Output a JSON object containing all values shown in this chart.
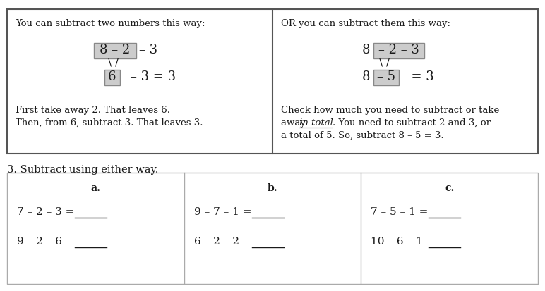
{
  "bg_color": "#ffffff",
  "border_color": "#555555",
  "gray_box_color": "#cccccc",
  "font_color": "#1a1a1a",
  "top_box": {
    "left_header": "You can subtract two numbers this way:",
    "right_header": "OR you can subtract them this way:",
    "left_desc1": "First take away 2. That leaves 6.",
    "left_desc2": "Then, from 6, subtract 3. That leaves 3.",
    "right_desc1": "Check how much you need to subtract or take",
    "right_desc2a": "away ",
    "right_desc2b": "in total",
    "right_desc2c": ". You need to subtract 2 and 3, or",
    "right_desc3": "a total of 5. So, subtract 8 – 5 = 3."
  },
  "bottom_label": "3. Subtract using either way.",
  "exercises": {
    "a_label": "a.",
    "b_label": "b.",
    "c_label": "c.",
    "row1": [
      "7 – 2 – 3 =",
      "9 – 7 – 1 =",
      "7 – 5 – 1 ="
    ],
    "row2": [
      "9 – 2 – 6 =",
      "6 – 2 – 2 =",
      "10 – 6 – 1 ="
    ]
  }
}
